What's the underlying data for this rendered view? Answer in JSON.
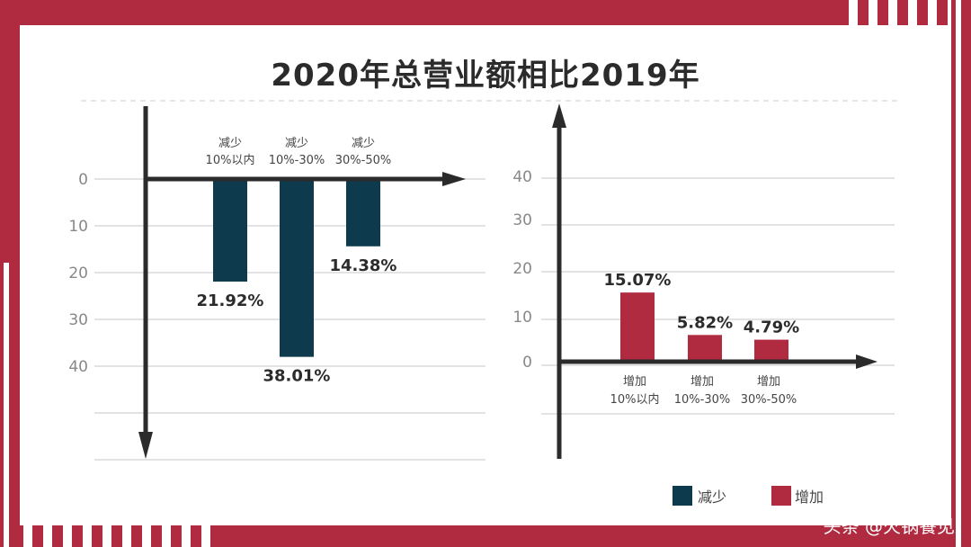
{
  "chart_data": [
    {
      "type": "bar",
      "title": "2020年总营业额相比2019年",
      "categories": [
        "减少\n10%以内",
        "减少\n10%-30%",
        "减少\n30%-50%"
      ],
      "series": [
        {
          "name": "减少",
          "values": [
            21.92,
            38.01,
            14.38
          ],
          "color": "#0d3a4d"
        }
      ],
      "data_labels": [
        "21.92%",
        "38.01%",
        "14.38%"
      ],
      "y_ticks": [
        "0",
        "10",
        "20",
        "30",
        "40"
      ],
      "ylim": [
        0,
        40
      ],
      "y_inverted": true,
      "grid": true
    },
    {
      "type": "bar",
      "categories": [
        "增加\n10%以内",
        "增加\n10%-30%",
        "增加\n30%-50%"
      ],
      "series": [
        {
          "name": "增加",
          "values": [
            15.07,
            5.82,
            4.79
          ],
          "color": "#b02a40"
        }
      ],
      "data_labels": [
        "15.07%",
        "5.82%",
        "4.79%"
      ],
      "y_ticks": [
        "0",
        "10",
        "20",
        "30",
        "40"
      ],
      "ylim": [
        0,
        40
      ],
      "grid": true
    }
  ],
  "title": "2020年总营业额相比2019年",
  "legend": [
    {
      "label": "减少",
      "color": "#0d3a4d"
    },
    {
      "label": "增加",
      "color": "#b02a40"
    }
  ],
  "watermark": "头条 @火锅餐见",
  "frame_color": "#b02a40"
}
